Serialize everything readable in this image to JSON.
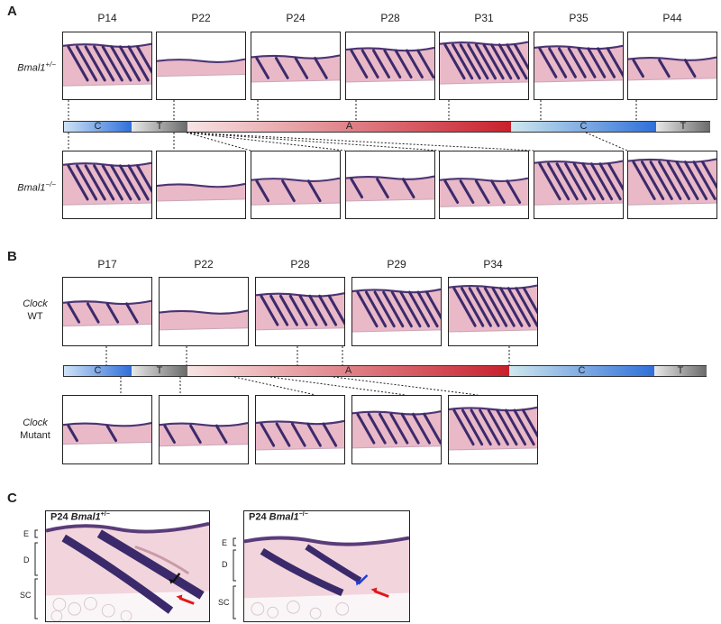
{
  "panels": {
    "A": {
      "letter": "A",
      "timepoints": [
        "P14",
        "P22",
        "P24",
        "P28",
        "P31",
        "P35",
        "P44"
      ],
      "top_label": "Bmal1",
      "top_sup": "+/−",
      "bottom_label": "Bmal1",
      "bottom_sup": "−/−",
      "phases": [
        "C",
        "T",
        "A",
        "C",
        "T"
      ]
    },
    "B": {
      "letter": "B",
      "timepoints": [
        "P17",
        "P22",
        "P28",
        "P29",
        "P34"
      ],
      "top_label_italic": "Clock",
      "top_label_plain": "WT",
      "bottom_label_italic": "Clock",
      "bottom_label_plain": "Mutant",
      "phases": [
        "C",
        "T",
        "A",
        "C",
        "T"
      ]
    },
    "C": {
      "letter": "C",
      "left_title": "P24",
      "left_gene": "Bmal1",
      "left_sup": "+/−",
      "right_title": "P24",
      "right_gene": "Bmal1",
      "right_sup": "−/−",
      "layer_labels": [
        "E",
        "D",
        "SC"
      ]
    }
  },
  "colors": {
    "catagen": "#2f6fd9",
    "telogen": "#777777",
    "anagen": "#c8202c",
    "tissue_pink": "#e8b9c6",
    "follicle_purple": "#3b2a6b"
  }
}
